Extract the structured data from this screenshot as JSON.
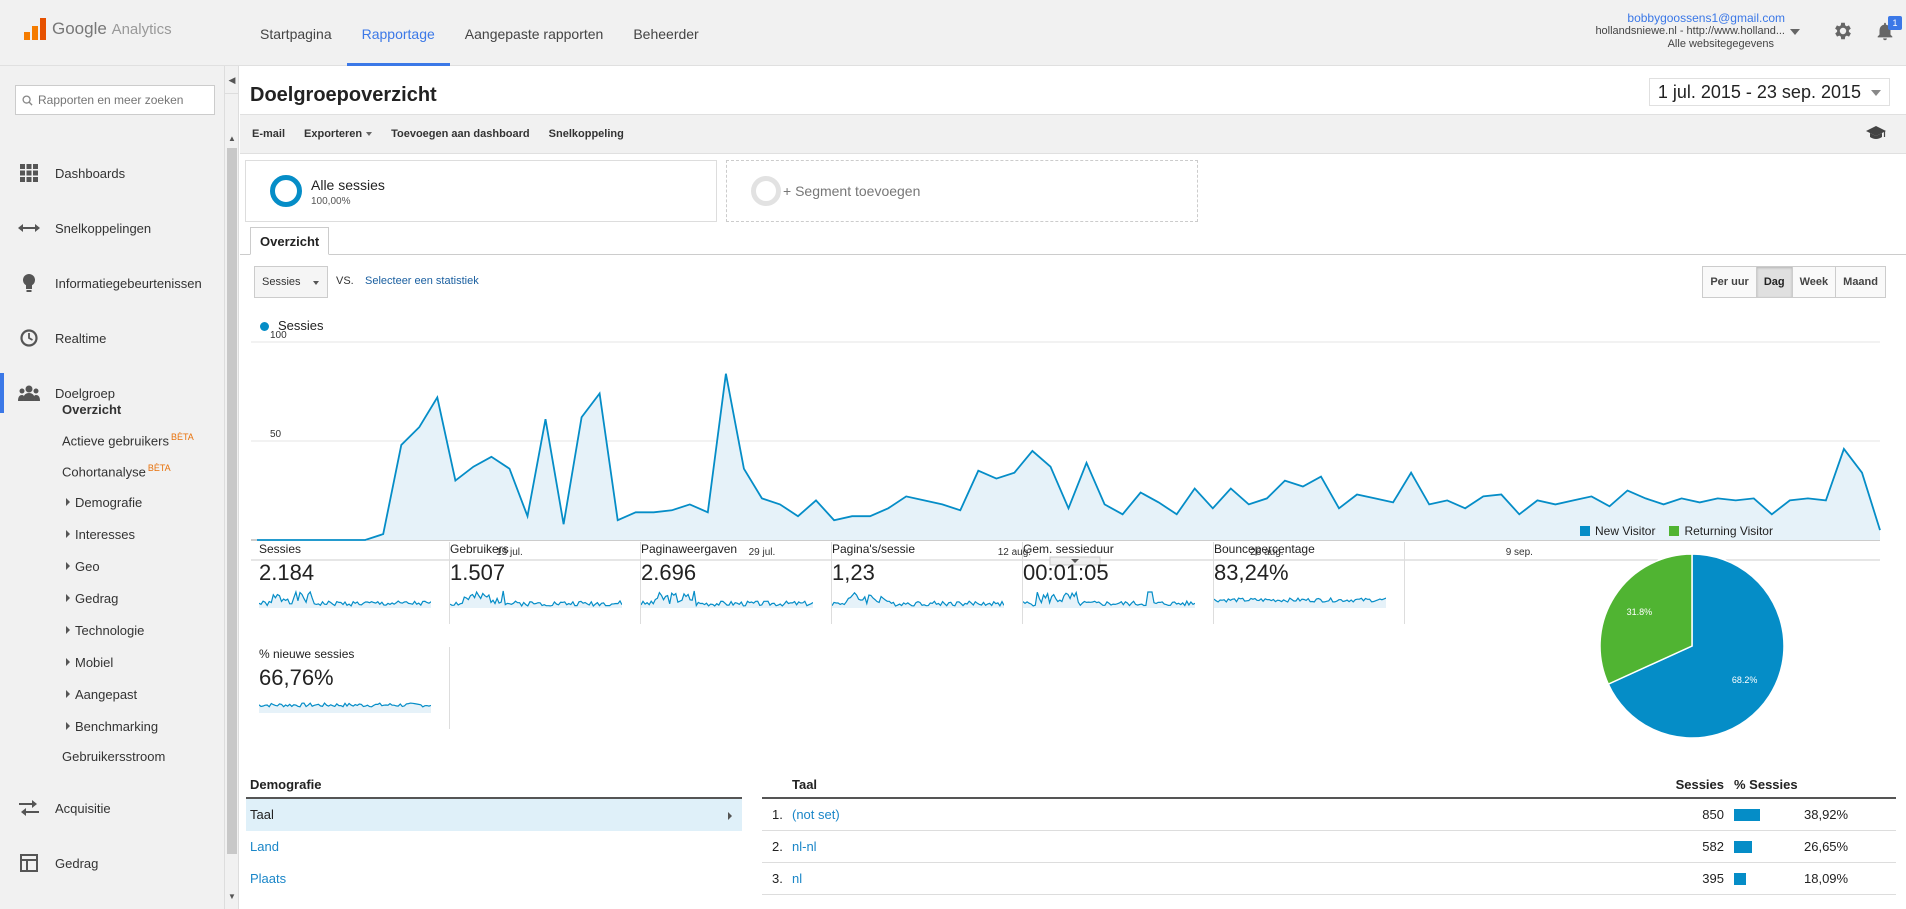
{
  "app": {
    "logo_google": "Google",
    "logo_analytics": "Analytics"
  },
  "nav": {
    "tabs": [
      "Startpagina",
      "Rapportage",
      "Aangepaste rapporten",
      "Beheerder"
    ],
    "active": "Rapportage"
  },
  "account": {
    "email": "bobbygoossens1@gmail.com",
    "property": "hollandsniewe.nl - http://www.holland...",
    "view": "Alle websitegegevens",
    "notifications": "1"
  },
  "sidebar": {
    "search_placeholder": "Rapporten en meer zoeken",
    "items": [
      {
        "label": "Dashboards",
        "icon": "grid-icon"
      },
      {
        "label": "Snelkoppelingen",
        "icon": "shortcut-arrows-icon"
      },
      {
        "label": "Informatiegebeurtenissen",
        "icon": "lightbulb-icon"
      },
      {
        "label": "Realtime",
        "icon": "clock-icon"
      },
      {
        "label": "Doelgroep",
        "icon": "people-icon"
      },
      {
        "label": "Acquisitie",
        "icon": "acquisition-arrows-icon"
      },
      {
        "label": "Gedrag",
        "icon": "layout-icon"
      }
    ],
    "sub_items": {
      "overzicht": "Overzicht",
      "actieve": "Actieve gebruikers",
      "cohort": "Cohortanalyse",
      "beta": "BÈTA",
      "demografie": "Demografie",
      "interesses": "Interesses",
      "geo": "Geo",
      "gedrag": "Gedrag",
      "technologie": "Technologie",
      "mobiel": "Mobiel",
      "aangepast": "Aangepast",
      "benchmarking": "Benchmarking",
      "stroom": "Gebruikersstroom"
    }
  },
  "page": {
    "title": "Doelgroepoverzicht",
    "date_range": "1 jul. 2015 - 23 sep. 2015"
  },
  "actions": {
    "email": "E-mail",
    "export": "Exporteren",
    "add_dashboard": "Toevoegen aan dashboard",
    "shortcut": "Snelkoppeling"
  },
  "segments": {
    "all_name": "Alle sessies",
    "all_pct": "100,00%",
    "add": "+ Segment toevoegen"
  },
  "overview_tab": "Overzicht",
  "controls": {
    "metric": "Sessies",
    "vs": "VS.",
    "select_stat": "Selecteer een statistiek",
    "granularity": [
      "Per uur",
      "Dag",
      "Week",
      "Maand"
    ],
    "granularity_active": "Dag"
  },
  "chart_data": {
    "type": "area",
    "series": [
      {
        "name": "Sessies",
        "color": "#058dc7",
        "values": [
          0,
          0,
          0,
          0,
          0,
          0,
          0,
          3,
          48,
          57,
          72,
          30,
          37,
          42,
          36,
          12,
          61,
          8,
          62,
          74,
          10,
          14,
          14,
          15,
          18,
          14,
          84,
          36,
          21,
          18,
          12,
          20,
          10,
          12,
          12,
          16,
          22,
          20,
          18,
          15,
          35,
          31,
          34,
          45,
          37,
          16,
          39,
          18,
          13,
          24,
          19,
          13,
          26,
          16,
          26,
          18,
          21,
          30,
          27,
          32,
          16,
          23,
          21,
          19,
          34,
          18,
          20,
          16,
          22,
          23,
          13,
          20,
          18,
          20,
          22,
          17,
          25,
          21,
          18,
          21,
          19,
          21,
          20,
          21,
          13,
          20,
          21,
          20,
          46,
          34,
          5
        ]
      }
    ],
    "x_ticks": [
      "15 jul.",
      "29 jul.",
      "12 aug.",
      "26 aug.",
      "9 sep."
    ],
    "y_ticks": [
      "100",
      "50"
    ],
    "ylim": [
      0,
      100
    ]
  },
  "metrics": [
    {
      "name": "Sessies",
      "value": "2.184"
    },
    {
      "name": "Gebruikers",
      "value": "1.507"
    },
    {
      "name": "Paginaweergaven",
      "value": "2.696"
    },
    {
      "name": "Pagina's/sessie",
      "value": "1,23"
    },
    {
      "name": "Gem. sessieduur",
      "value": "00:01:05"
    },
    {
      "name": "Bouncepercentage",
      "value": "83,24%"
    },
    {
      "name": "% nieuwe sessies",
      "value": "66,76%"
    }
  ],
  "pie": {
    "type": "pie",
    "slices": [
      {
        "name": "New Visitor",
        "value": 68.2,
        "label": "68.2%",
        "color": "#058dc7"
      },
      {
        "name": "Returning Visitor",
        "value": 31.8,
        "label": "31.8%",
        "color": "#50b432"
      }
    ]
  },
  "demografie": {
    "header": "Demografie",
    "rows": [
      "Taal",
      "Land",
      "Plaats"
    ],
    "selected": "Taal"
  },
  "taal_table": {
    "col_name": "Taal",
    "col_sessions": "Sessies",
    "col_pct": "% Sessies",
    "rows": [
      {
        "rank": "1.",
        "name": "(not set)",
        "sessions": "850",
        "pct": "38,92%",
        "share": 0.3892
      },
      {
        "rank": "2.",
        "name": "nl-nl",
        "sessions": "582",
        "pct": "26,65%",
        "share": 0.2665
      },
      {
        "rank": "3.",
        "name": "nl",
        "sessions": "395",
        "pct": "18,09%",
        "share": 0.1809
      }
    ]
  }
}
